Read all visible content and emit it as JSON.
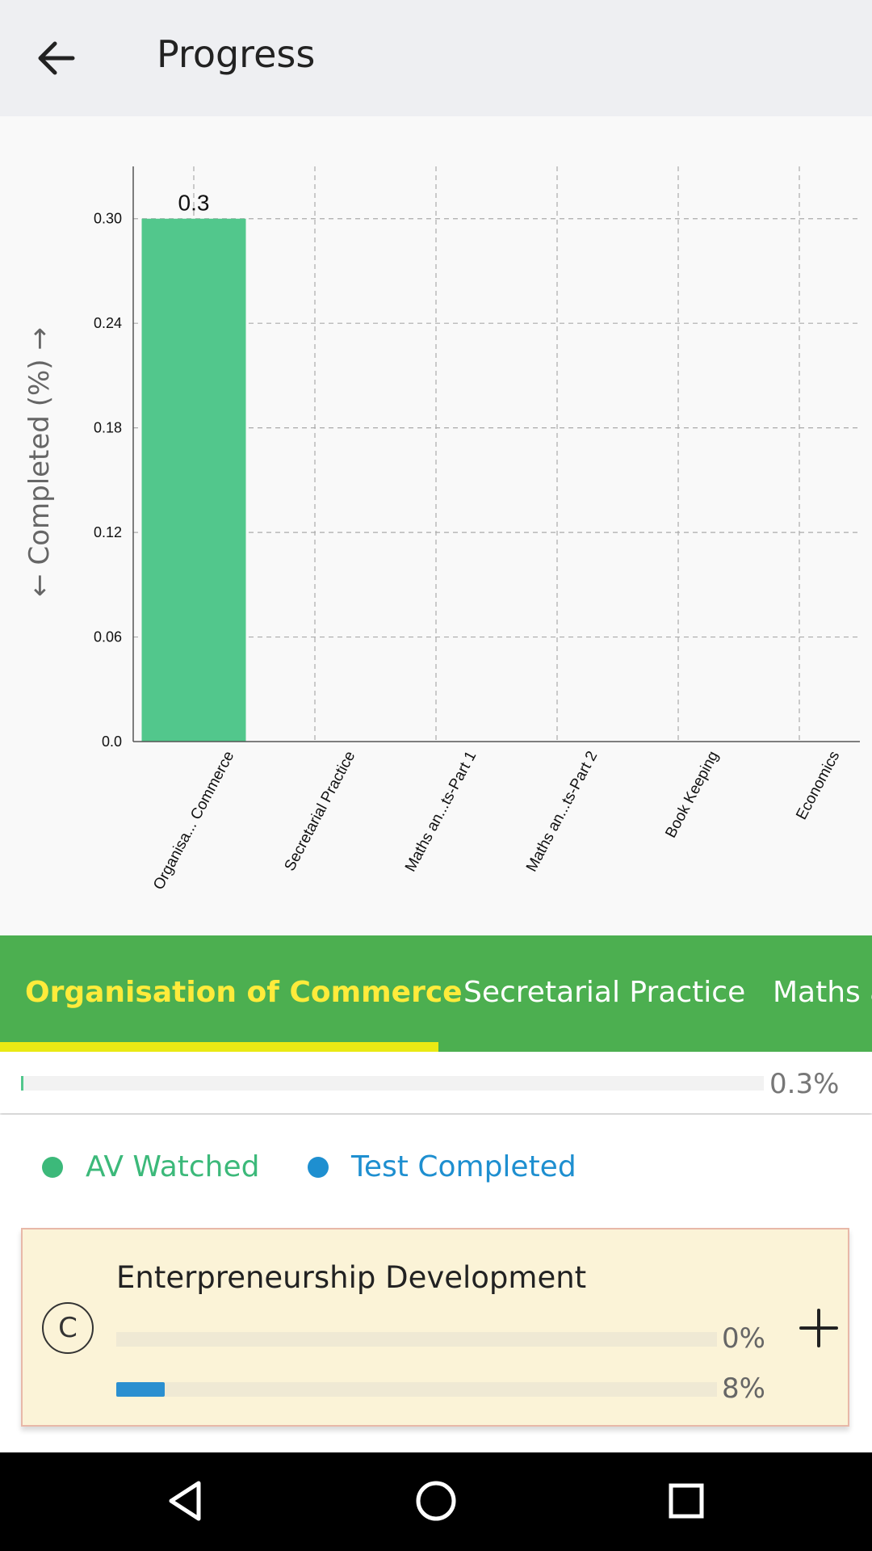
{
  "appbar": {
    "title": "Progress",
    "back_icon": "arrow-back-icon"
  },
  "chart_data": {
    "type": "bar",
    "title": "",
    "xlabel": "",
    "ylabel": "← Completed (%) →",
    "categories": [
      "Organisa... Commerce",
      "Secretarial Practice",
      "Maths an...ts-Part 1",
      "Maths an...ts-Part 2",
      "Book Keeping",
      "Economics"
    ],
    "values": [
      0.3,
      0,
      0,
      0,
      0,
      0
    ],
    "data_labels": [
      "0.3",
      "",
      "",
      "",
      "",
      ""
    ],
    "yticks": [
      "0.0",
      "0.06",
      "0.12",
      "0.18",
      "0.24",
      "0.30"
    ],
    "ylim": [
      0,
      0.33
    ],
    "grid": true,
    "bar_color": "#52c78c"
  },
  "tabs": [
    {
      "label": "Organisation of Commerce",
      "active": true
    },
    {
      "label": "Secretarial Practice",
      "active": false
    },
    {
      "label": "Maths a",
      "active": false
    }
  ],
  "overall": {
    "progress_percent": 0.3,
    "label": "0.3%"
  },
  "legend": [
    {
      "label": "AV Watched",
      "color": "#3cb97a"
    },
    {
      "label": "Test Completed",
      "color": "#1e8fd0"
    }
  ],
  "card": {
    "badge": "C",
    "title": "Enterpreneurship Development",
    "av_percent": 0,
    "av_label": "0%",
    "test_percent": 8,
    "test_label": "8%",
    "expand_icon": "plus-icon"
  },
  "navbar": {
    "back_icon": "triangle-back-icon",
    "home_icon": "circle-home-icon",
    "recents_icon": "square-recents-icon"
  },
  "colors": {
    "appbar_bg": "#eeeff2",
    "tab_bar": "#4caf50",
    "tab_active": "#ffeb3b",
    "tab_indicator": "#eaea14",
    "card_bg": "#fbf3d7"
  }
}
